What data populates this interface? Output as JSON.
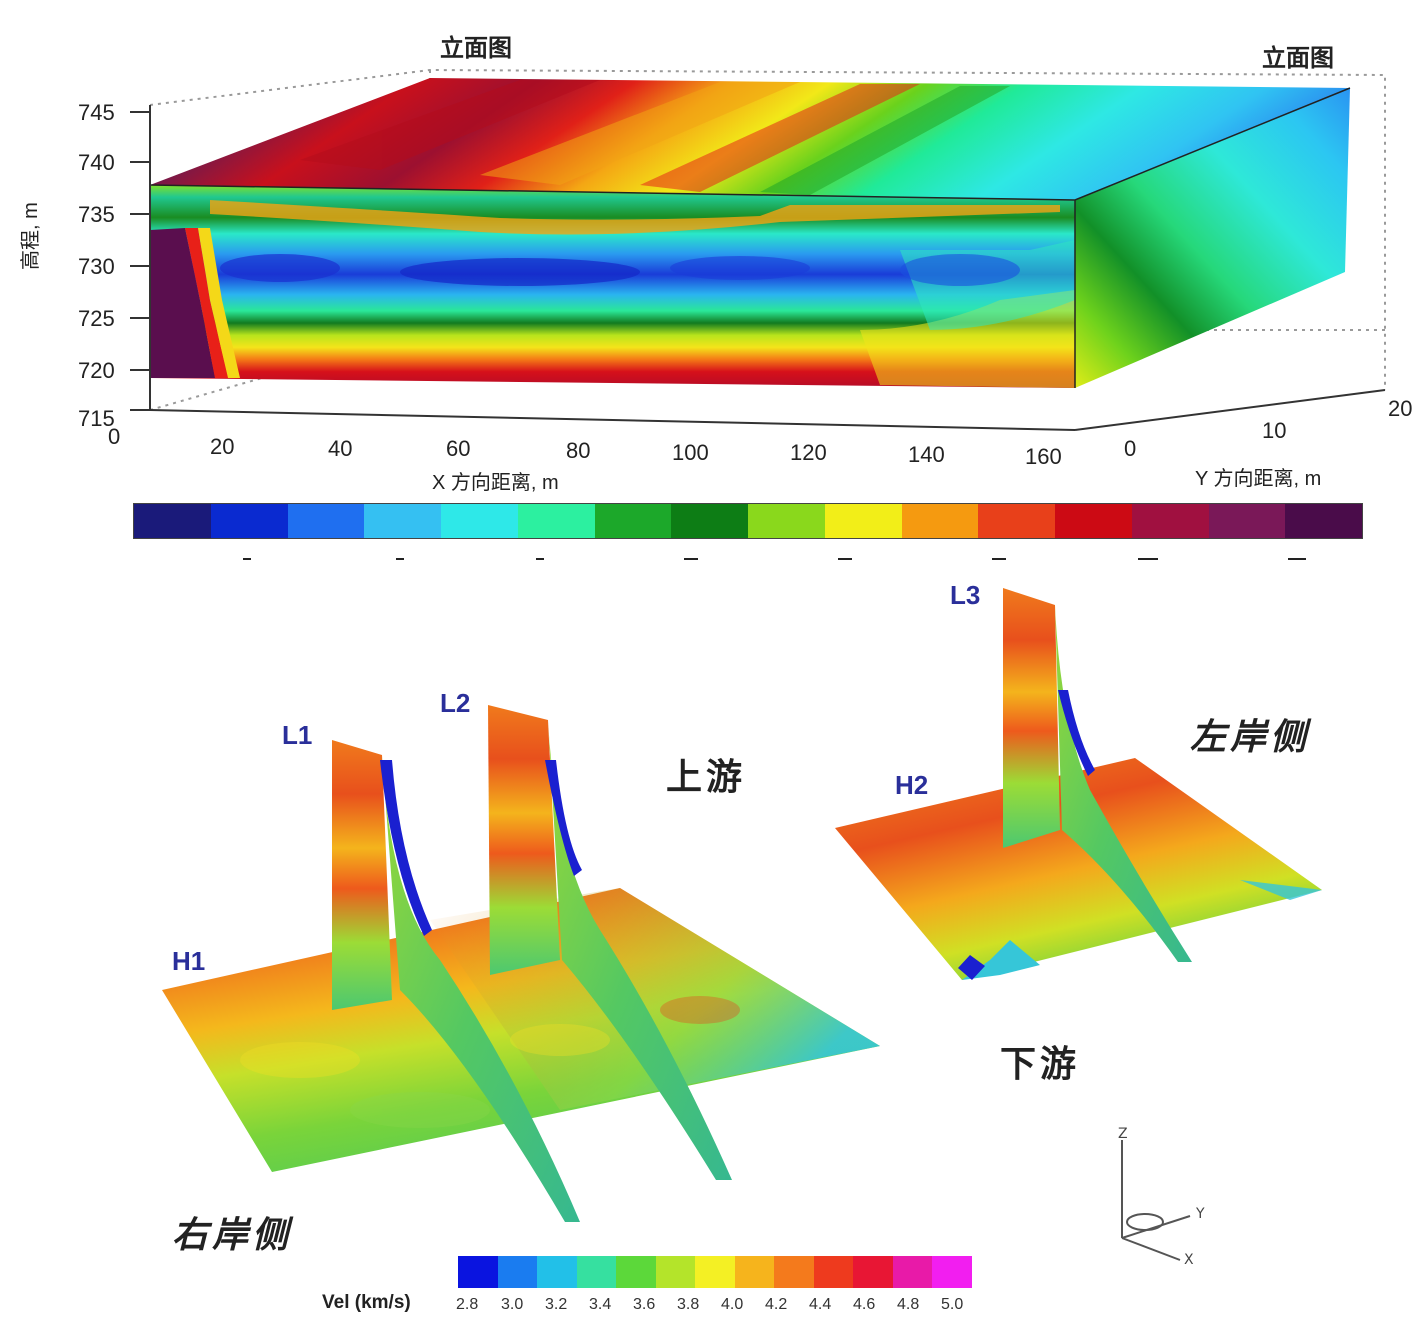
{
  "top_block": {
    "corner_label_left": "立面图",
    "corner_label_right": "立面图",
    "z_axis_label": "高程, m",
    "z_ticks": [
      "745",
      "740",
      "735",
      "730",
      "725",
      "720",
      "715"
    ],
    "x_ticks": [
      "0",
      "20",
      "40",
      "60",
      "80",
      "100",
      "120",
      "140",
      "160"
    ],
    "x_axis_label": "X 方向距离, m",
    "y_ticks": [
      "0",
      "10",
      "20"
    ],
    "y_axis_label": "Y 方向距离, m"
  },
  "mid_colorbar": {
    "colors": [
      "#1a1a7a",
      "#0a2ad0",
      "#1f6ff0",
      "#35c0f2",
      "#2ee8e8",
      "#2cf0a0",
      "#1ca82a",
      "#0d7d15",
      "#8ad81c",
      "#f2ee18",
      "#f59a10",
      "#e8401a",
      "#cc0a14",
      "#a01040",
      "#7a1858",
      "#4a0c4a"
    ]
  },
  "bottom_3d": {
    "labels": {
      "L1": "L1",
      "L2": "L2",
      "L3": "L3",
      "H1": "H1",
      "H2": "H2"
    },
    "upstream": "上游",
    "downstream": "下游",
    "left_bank": "左岸侧",
    "right_bank": "右岸侧",
    "axes": {
      "z": "Z",
      "y": "Y",
      "x": "X"
    }
  },
  "legend": {
    "title": "Vel (km/s)",
    "ticks": [
      "2.8",
      "3.0",
      "3.2",
      "3.4",
      "3.6",
      "3.8",
      "4.0",
      "4.2",
      "4.4",
      "4.6",
      "4.8",
      "5.0"
    ],
    "colors": [
      "#0a14e0",
      "#1a7cf0",
      "#22c0e8",
      "#36e0a0",
      "#5cd83a",
      "#b4e42a",
      "#f4f024",
      "#f6b41c",
      "#f47a1c",
      "#ee3a1e",
      "#e81634",
      "#e81aa8",
      "#f21ef0"
    ]
  },
  "colors": {
    "frame": "#333333",
    "label_blue": "#2a2f9a"
  }
}
